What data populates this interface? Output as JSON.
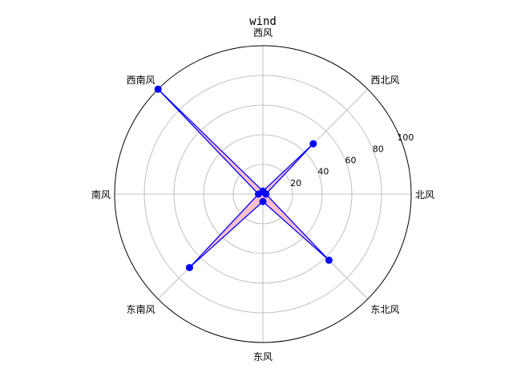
{
  "chart_data": {
    "type": "radar",
    "title": "wind",
    "categories": [
      "北风",
      "西北风",
      "西风",
      "西南风",
      "南风",
      "东南风",
      "东风",
      "东北风"
    ],
    "values": [
      2,
      48,
      2,
      100,
      3,
      70,
      5,
      63
    ],
    "rlim": [
      0,
      100
    ],
    "rticks": [
      20,
      40,
      60,
      80,
      100
    ],
    "grid": true,
    "line_color": "#0000ff",
    "fill_color": "#ffc0cb",
    "marker_color": "#0000ff"
  }
}
